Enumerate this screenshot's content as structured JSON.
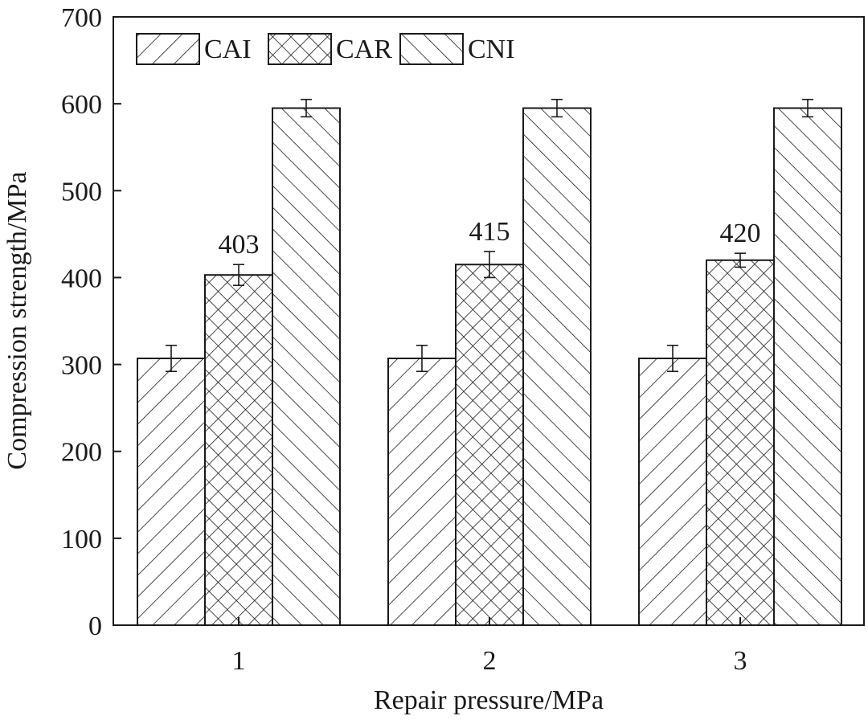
{
  "chart_data": {
    "type": "bar",
    "title": "",
    "xlabel": "Repair pressure/MPa",
    "ylabel": "Compression strength/MPa",
    "categories": [
      "1",
      "2",
      "3"
    ],
    "series": [
      {
        "name": "CAI",
        "pattern": "diagonal-forward",
        "values": [
          307,
          307,
          307
        ],
        "errors": [
          15,
          15,
          15
        ]
      },
      {
        "name": "CAR",
        "pattern": "crosshatch",
        "values": [
          403,
          415,
          420
        ],
        "errors": [
          12,
          15,
          8
        ]
      },
      {
        "name": "CNI",
        "pattern": "diagonal-backward",
        "values": [
          595,
          595,
          595
        ],
        "errors": [
          10,
          10,
          10
        ]
      }
    ],
    "data_labels": [
      {
        "series": "CAR",
        "category": "1",
        "text": "403"
      },
      {
        "series": "CAR",
        "category": "2",
        "text": "415"
      },
      {
        "series": "CAR",
        "category": "3",
        "text": "420"
      }
    ],
    "ylim": [
      0,
      700
    ],
    "yticks": [
      0,
      100,
      200,
      300,
      400,
      500,
      600,
      700
    ],
    "ytick_labels": [
      "0",
      "100",
      "200",
      "300",
      "400",
      "500",
      "600",
      "700"
    ],
    "grid": false,
    "legend": {
      "position": "top-left",
      "orientation": "horizontal"
    },
    "colors": {
      "ink": "#1a1a1a",
      "background": "#ffffff"
    }
  }
}
